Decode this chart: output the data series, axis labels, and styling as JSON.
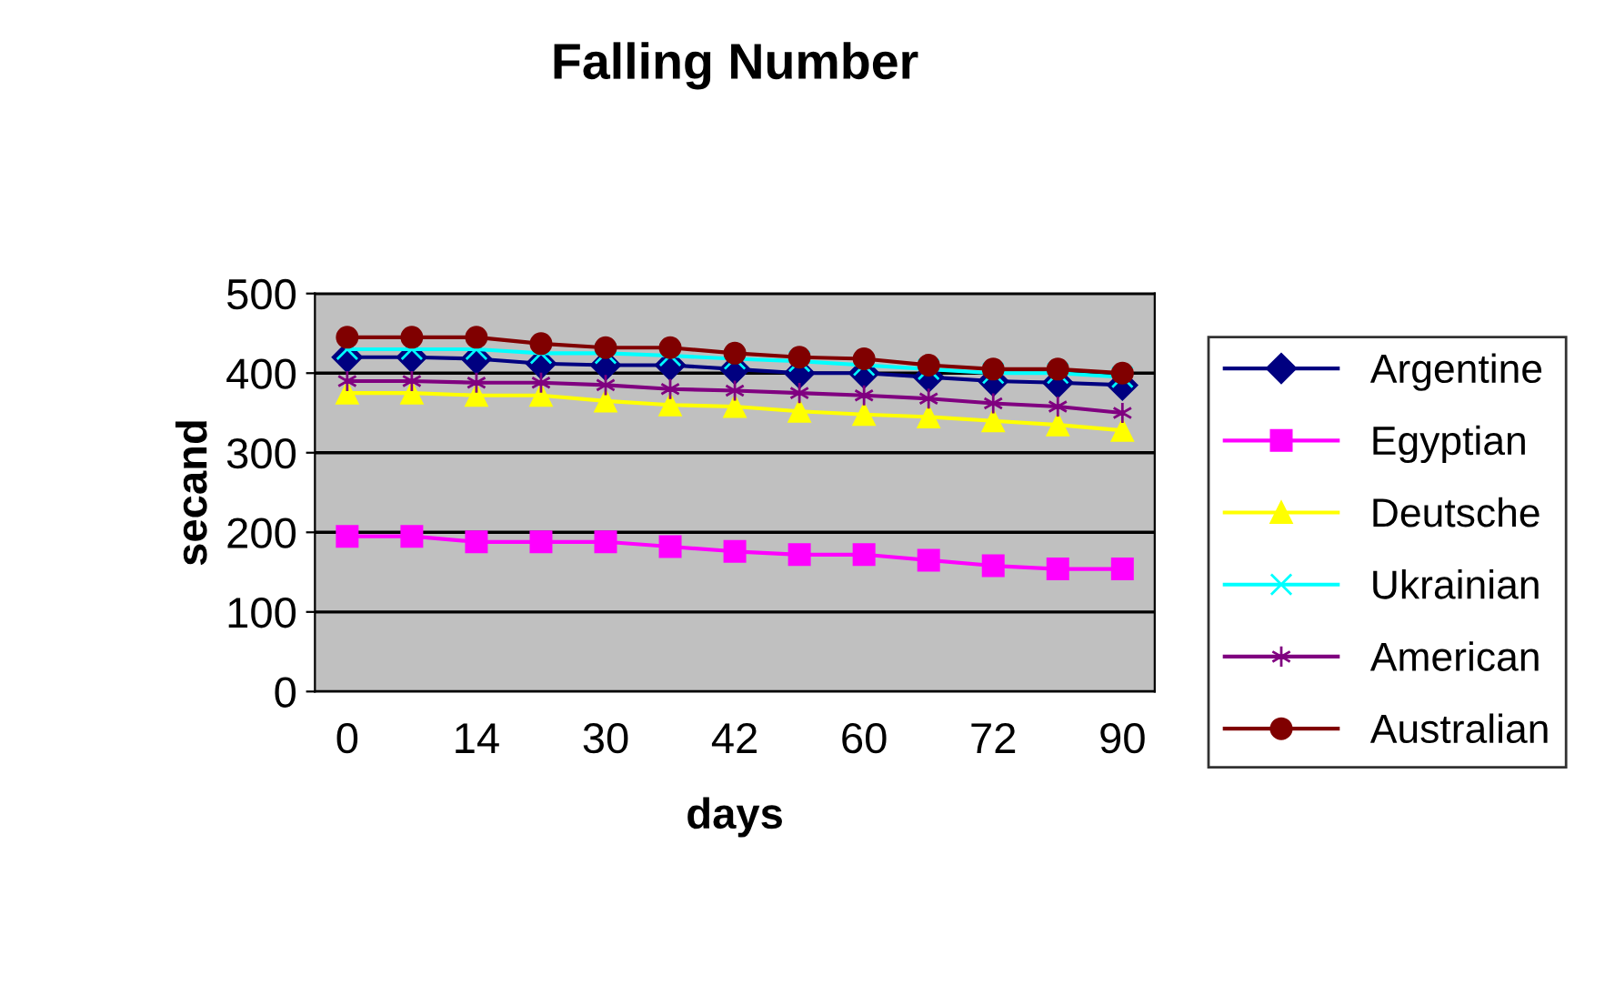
{
  "chart_data": {
    "type": "line",
    "title": "Falling Number",
    "xlabel": "days",
    "ylabel": "secand",
    "categories": [
      "0",
      null,
      "14",
      null,
      "30",
      null,
      "42",
      null,
      "60",
      null,
      "72",
      null,
      "90"
    ],
    "ylim": [
      0,
      500
    ],
    "yticks": [
      0,
      100,
      200,
      300,
      400,
      500
    ],
    "grid": "y",
    "legend": "right",
    "series": [
      {
        "name": "Argentine",
        "color": "#000080",
        "marker": "diamond",
        "values": [
          420,
          420,
          418,
          412,
          410,
          410,
          405,
          400,
          400,
          395,
          390,
          388,
          385
        ]
      },
      {
        "name": "Egyptian",
        "color": "#ff00ff",
        "marker": "square",
        "values": [
          195,
          195,
          188,
          188,
          188,
          182,
          176,
          172,
          172,
          165,
          158,
          154,
          154
        ]
      },
      {
        "name": "Deutsche",
        "color": "#ffff00",
        "marker": "triangle",
        "values": [
          375,
          375,
          372,
          372,
          365,
          360,
          358,
          352,
          348,
          345,
          340,
          335,
          328
        ]
      },
      {
        "name": "Ukrainian",
        "color": "#00ffff",
        "marker": "cross",
        "values": [
          430,
          430,
          430,
          425,
          425,
          422,
          418,
          415,
          410,
          405,
          400,
          400,
          395
        ]
      },
      {
        "name": "American",
        "color": "#800080",
        "marker": "cross",
        "values": [
          390,
          390,
          388,
          388,
          385,
          380,
          378,
          375,
          372,
          368,
          362,
          358,
          350
        ]
      },
      {
        "name": "Australian",
        "color": "#800000",
        "marker": "circle",
        "values": [
          445,
          445,
          445,
          437,
          432,
          432,
          425,
          420,
          418,
          410,
          405,
          405,
          400
        ]
      }
    ]
  }
}
